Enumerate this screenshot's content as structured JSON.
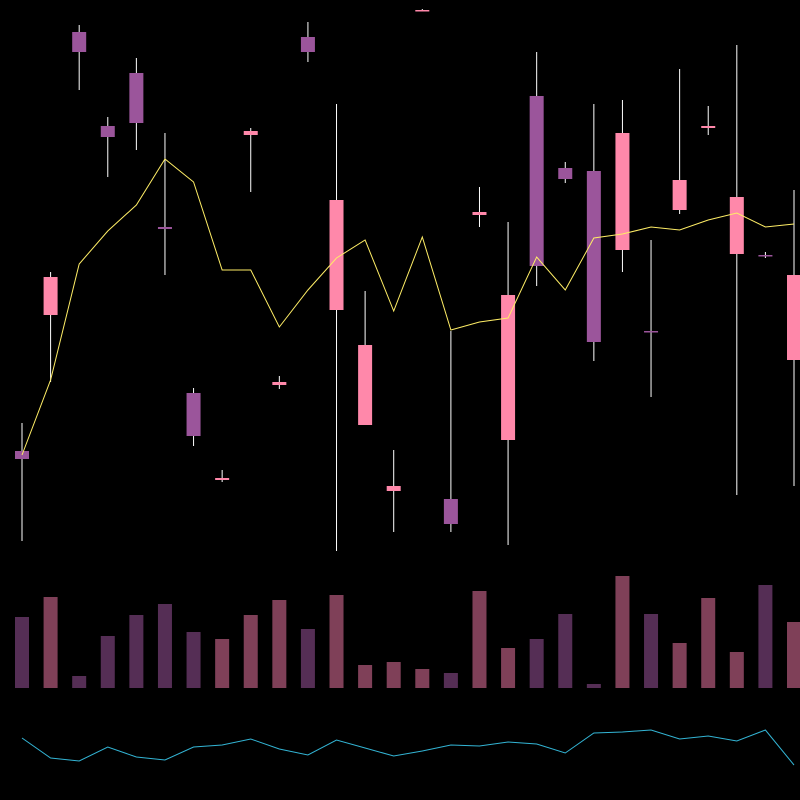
{
  "chart_data": {
    "type": "candlestick",
    "open": [
      349,
      485,
      768,
      674,
      727,
      573,
      407,
      320,
      665,
      415,
      763,
      490,
      375,
      309,
      789,
      301,
      585,
      360,
      704,
      632,
      629,
      550,
      469,
      590,
      672,
      546,
      545,
      440
    ],
    "high": [
      377,
      528,
      775,
      683,
      742,
      667,
      412,
      330,
      672,
      424,
      778,
      696,
      509,
      350,
      791,
      469,
      613,
      578,
      748,
      638,
      696,
      700,
      560,
      731,
      694,
      755,
      548,
      610
    ],
    "low": [
      259,
      418,
      710,
      623,
      650,
      525,
      354,
      318,
      608,
      411,
      738,
      249,
      375,
      268,
      789,
      268,
      573,
      255,
      514,
      617,
      439,
      528,
      403,
      586,
      665,
      305,
      542,
      314
    ],
    "close": [
      341,
      523,
      748,
      663,
      677,
      571,
      364,
      322,
      669,
      418,
      748,
      600,
      455,
      314,
      790,
      276,
      588,
      505,
      534,
      621,
      458,
      667,
      468,
      620,
      674,
      603,
      544,
      525
    ],
    "up_color": "#ff88aa",
    "down_color": "#9b559b",
    "ylim": [
      240,
      800
    ],
    "moving_average": {
      "color": "#ffee66",
      "values": [
        345,
        420,
        536,
        569,
        595,
        641,
        618,
        530,
        530,
        473,
        510,
        542,
        560,
        489,
        563,
        470,
        478,
        482,
        543,
        510,
        562,
        566,
        573,
        570,
        580,
        587,
        573,
        576
      ]
    },
    "volume": {
      "values": [
        71,
        91,
        12,
        52,
        73,
        84,
        56,
        49,
        73,
        88,
        59,
        93,
        23,
        26,
        19,
        15,
        97,
        40,
        49,
        74,
        4,
        112,
        74,
        45,
        90,
        36,
        103,
        66
      ],
      "up_color": "#7f4058",
      "down_color": "#552e55",
      "ylim": [
        0,
        130
      ]
    },
    "indicator": {
      "color": "#33b5d5",
      "values": [
        62,
        42,
        39,
        53,
        43,
        40,
        53,
        55,
        61,
        51,
        45,
        60,
        52,
        44,
        49,
        55,
        54,
        58,
        56,
        47,
        67,
        68,
        70,
        61,
        64,
        59,
        70,
        35
      ],
      "ylim": [
        0,
        100
      ]
    }
  }
}
